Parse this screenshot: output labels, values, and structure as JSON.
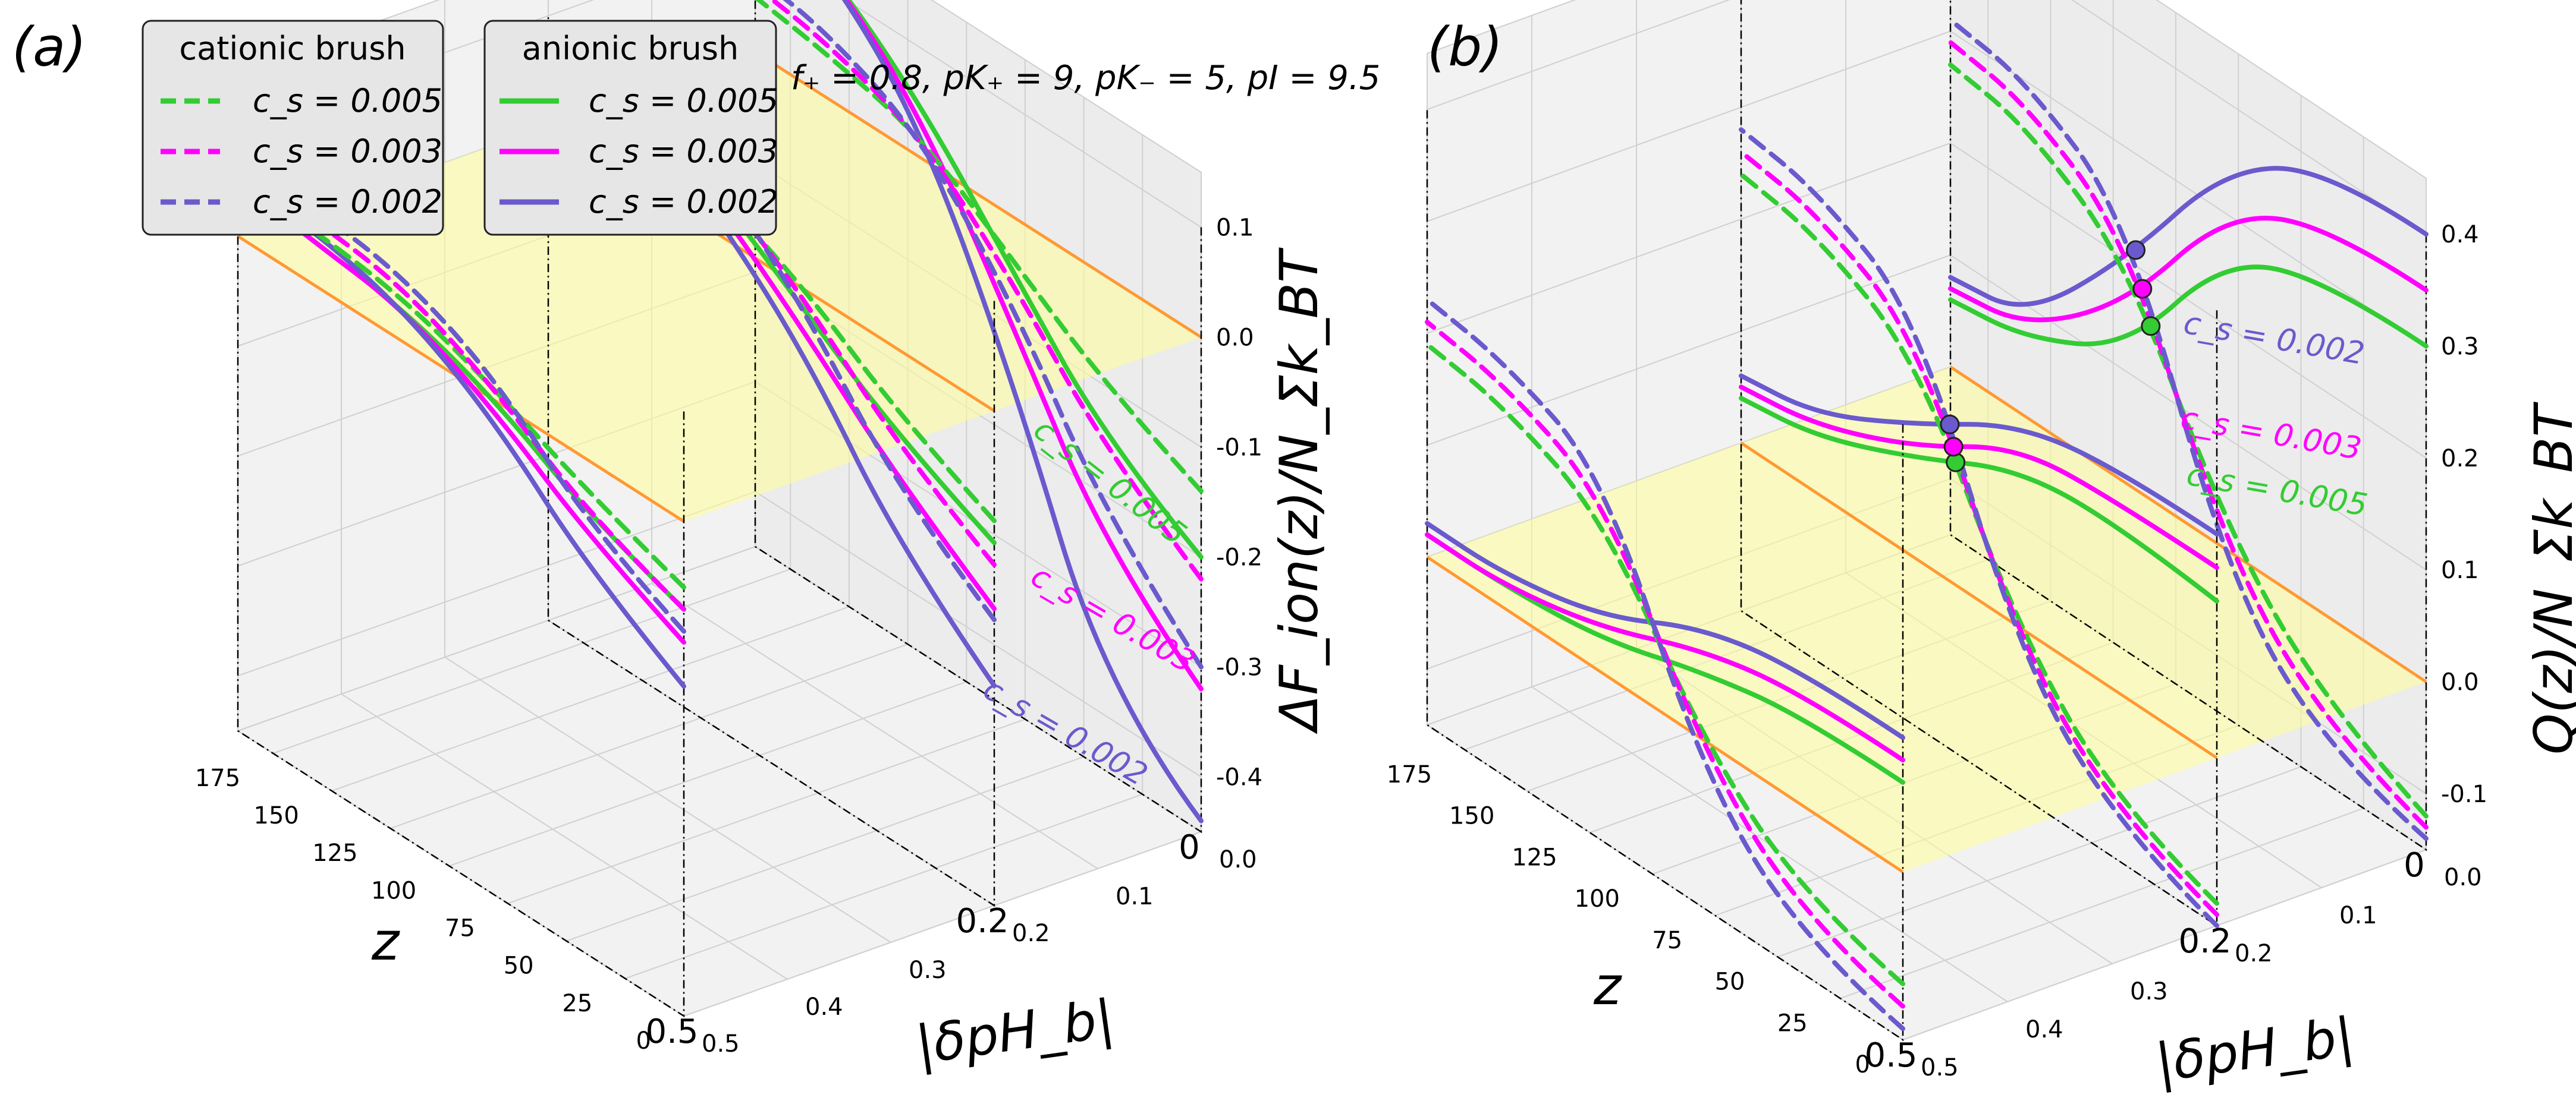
{
  "chart_data": [
    {
      "panel": "(a)",
      "type": "line",
      "subtype": "3d-waterfall",
      "title": "f₊ = 0.8, pK₊ = 9, pK₋ = 5, pI = 9.5",
      "xlabel": "z",
      "ylabel": "|δpH_b|",
      "zlabel": "ΔF_ion(z)/N_Σk_BT",
      "x_ticks": [
        "0",
        "25",
        "50",
        "75",
        "100",
        "125",
        "150",
        "175"
      ],
      "y_ticks": [
        "0.0",
        "0.1",
        "0.2",
        "0.3",
        "0.4",
        "0.5"
      ],
      "z_ticks": [
        "0.1",
        "0.0",
        "-0.1",
        "-0.2",
        "-0.3",
        "-0.4"
      ],
      "xlim": [
        0,
        190
      ],
      "ylim": [
        0,
        0.5
      ],
      "zlim": [
        -0.45,
        0.15
      ],
      "slice_labels": [
        "0",
        "0.2",
        "0.5"
      ],
      "legend": [
        {
          "title": "cationic brush",
          "entries": [
            {
              "label": "c_s = 0.005",
              "color": "#33cc33",
              "style": "dashed"
            },
            {
              "label": "c_s = 0.003",
              "color": "#ff00ff",
              "style": "dashed"
            },
            {
              "label": "c_s = 0.002",
              "color": "#6a5acd",
              "style": "dashed"
            }
          ]
        },
        {
          "title": "anionic brush",
          "entries": [
            {
              "label": "c_s = 0.005",
              "color": "#33cc33",
              "style": "solid"
            },
            {
              "label": "c_s = 0.003",
              "color": "#ff00ff",
              "style": "solid"
            },
            {
              "label": "c_s = 0.002",
              "color": "#6a5acd",
              "style": "solid"
            }
          ]
        }
      ],
      "annotations": [
        {
          "text": "c_s = 0.005",
          "color": "#33cc33"
        },
        {
          "text": "c_s = 0.003",
          "color": "#ff00ff"
        },
        {
          "text": "c_s = 0.002",
          "color": "#6a5acd"
        }
      ],
      "slices": [
        {
          "dph": 0.0,
          "series": [
            {
              "cs": 0.005,
              "kind": "anionic",
              "z": [
                0,
                40,
                80,
                120,
                160,
                190
              ],
              "values": [
                -0.2,
                -0.15,
                -0.05,
                0.05,
                0.12,
                0.14
              ]
            },
            {
              "cs": 0.003,
              "kind": "anionic",
              "z": [
                0,
                40,
                80,
                120,
                160,
                190
              ],
              "values": [
                -0.32,
                -0.25,
                -0.1,
                0.04,
                0.12,
                0.14
              ]
            },
            {
              "cs": 0.002,
              "kind": "anionic",
              "z": [
                0,
                40,
                80,
                120,
                160,
                190
              ],
              "values": [
                -0.44,
                -0.38,
                -0.15,
                0.03,
                0.12,
                0.14
              ]
            },
            {
              "cs": 0.005,
              "kind": "cationic",
              "z": [
                0,
                40,
                80,
                120,
                160,
                190
              ],
              "values": [
                -0.14,
                -0.1,
                -0.04,
                0.02,
                0.04,
                0.05
              ]
            },
            {
              "cs": 0.003,
              "kind": "cationic",
              "z": [
                0,
                40,
                80,
                120,
                160,
                190
              ],
              "values": [
                -0.22,
                -0.16,
                -0.06,
                0.02,
                0.05,
                0.06
              ]
            },
            {
              "cs": 0.002,
              "kind": "cationic",
              "z": [
                0,
                40,
                80,
                120,
                160,
                190
              ],
              "values": [
                -0.3,
                -0.22,
                -0.08,
                0.02,
                0.06,
                0.07
              ]
            }
          ]
        },
        {
          "dph": 0.2,
          "series": [
            {
              "cs": 0.005,
              "kind": "anionic",
              "z": [
                0,
                40,
                80,
                120,
                160,
                190
              ],
              "values": [
                -0.12,
                -0.08,
                -0.02,
                0.04,
                0.08,
                0.09
              ]
            },
            {
              "cs": 0.003,
              "kind": "anionic",
              "z": [
                0,
                40,
                80,
                120,
                160,
                190
              ],
              "values": [
                -0.18,
                -0.12,
                -0.04,
                0.03,
                0.08,
                0.09
              ]
            },
            {
              "cs": 0.002,
              "kind": "anionic",
              "z": [
                0,
                40,
                80,
                120,
                160,
                190
              ],
              "values": [
                -0.25,
                -0.18,
                -0.06,
                0.02,
                0.08,
                0.09
              ]
            },
            {
              "cs": 0.005,
              "kind": "cationic",
              "z": [
                0,
                40,
                80,
                120,
                160,
                190
              ],
              "values": [
                -0.1,
                -0.06,
                0.0,
                0.04,
                0.06,
                0.07
              ]
            },
            {
              "cs": 0.003,
              "kind": "cationic",
              "z": [
                0,
                40,
                80,
                120,
                160,
                190
              ],
              "values": [
                -0.14,
                -0.09,
                -0.01,
                0.05,
                0.07,
                0.08
              ]
            },
            {
              "cs": 0.002,
              "kind": "cationic",
              "z": [
                0,
                40,
                80,
                120,
                160,
                190
              ],
              "values": [
                -0.19,
                -0.13,
                -0.02,
                0.06,
                0.08,
                0.09
              ]
            }
          ]
        },
        {
          "dph": 0.5,
          "series": [
            {
              "cs": 0.005,
              "kind": "anionic",
              "z": [
                0,
                40,
                80,
                120,
                160,
                190
              ],
              "values": [
                -0.08,
                -0.05,
                0.0,
                0.03,
                0.04,
                0.05
              ]
            },
            {
              "cs": 0.003,
              "kind": "anionic",
              "z": [
                0,
                40,
                80,
                120,
                160,
                190
              ],
              "values": [
                -0.11,
                -0.07,
                -0.01,
                0.03,
                0.04,
                0.05
              ]
            },
            {
              "cs": 0.002,
              "kind": "anionic",
              "z": [
                0,
                40,
                80,
                120,
                160,
                190
              ],
              "values": [
                -0.15,
                -0.1,
                -0.02,
                0.03,
                0.05,
                0.05
              ]
            },
            {
              "cs": 0.005,
              "kind": "cationic",
              "z": [
                0,
                40,
                80,
                120,
                160,
                190
              ],
              "values": [
                -0.06,
                -0.03,
                0.01,
                0.04,
                0.05,
                0.05
              ]
            },
            {
              "cs": 0.003,
              "kind": "cationic",
              "z": [
                0,
                40,
                80,
                120,
                160,
                190
              ],
              "values": [
                -0.08,
                -0.05,
                0.01,
                0.05,
                0.06,
                0.06
              ]
            },
            {
              "cs": 0.002,
              "kind": "cationic",
              "z": [
                0,
                40,
                80,
                120,
                160,
                190
              ],
              "values": [
                -0.1,
                -0.06,
                0.02,
                0.06,
                0.07,
                0.07
              ]
            }
          ]
        }
      ]
    },
    {
      "panel": "(b)",
      "type": "line",
      "subtype": "3d-waterfall",
      "title": "",
      "xlabel": "z",
      "ylabel": "|δpH_b|",
      "zlabel": "Q(z)/N_Σk_BT",
      "x_ticks": [
        "0",
        "25",
        "50",
        "75",
        "100",
        "125",
        "150",
        "175"
      ],
      "y_ticks": [
        "0.0",
        "0.1",
        "0.2",
        "0.3",
        "0.4",
        "0.5"
      ],
      "z_ticks": [
        "0.4",
        "0.3",
        "0.2",
        "0.1",
        "0.0",
        "-0.1"
      ],
      "xlim": [
        0,
        190
      ],
      "ylim": [
        0,
        0.5
      ],
      "zlim": [
        -0.15,
        0.45
      ],
      "slice_labels": [
        "0",
        "0.2",
        "0.5"
      ],
      "annotations": [
        {
          "text": "c_s = 0.002",
          "color": "#6a5acd"
        },
        {
          "text": "c_s = 0.003",
          "color": "#ff00ff"
        },
        {
          "text": "c_s = 0.005",
          "color": "#33cc33"
        }
      ],
      "slices": [
        {
          "dph": 0.0,
          "series": [
            {
              "cs": 0.005,
              "kind": "anionic",
              "z": [
                0,
                40,
                80,
                120,
                160,
                190
              ],
              "values": [
                0.3,
                0.3,
                0.26,
                0.12,
                0.07,
                0.06
              ]
            },
            {
              "cs": 0.003,
              "kind": "anionic",
              "z": [
                0,
                40,
                80,
                120,
                160,
                190
              ],
              "values": [
                0.35,
                0.35,
                0.3,
                0.16,
                0.08,
                0.07
              ]
            },
            {
              "cs": 0.002,
              "kind": "anionic",
              "z": [
                0,
                40,
                80,
                120,
                160,
                190
              ],
              "values": [
                0.4,
                0.4,
                0.34,
                0.2,
                0.09,
                0.08
              ]
            },
            {
              "cs": 0.005,
              "kind": "cationic",
              "z": [
                0,
                40,
                80,
                120,
                160,
                190
              ],
              "values": [
                -0.12,
                -0.08,
                0.02,
                0.2,
                0.26,
                0.27
              ]
            },
            {
              "cs": 0.003,
              "kind": "cationic",
              "z": [
                0,
                40,
                80,
                120,
                160,
                190
              ],
              "values": [
                -0.13,
                -0.1,
                0.0,
                0.22,
                0.28,
                0.29
              ]
            },
            {
              "cs": 0.002,
              "kind": "cationic",
              "z": [
                0,
                40,
                80,
                120,
                160,
                190
              ],
              "values": [
                -0.14,
                -0.12,
                -0.02,
                0.24,
                0.3,
                0.31
              ]
            }
          ]
        },
        {
          "dph": 0.2,
          "series": [
            {
              "cs": 0.005,
              "kind": "anionic",
              "z": [
                0,
                40,
                80,
                120,
                160,
                190
              ],
              "values": [
                0.14,
                0.15,
                0.14,
                0.09,
                0.05,
                0.04
              ]
            },
            {
              "cs": 0.003,
              "kind": "anionic",
              "z": [
                0,
                40,
                80,
                120,
                160,
                190
              ],
              "values": [
                0.17,
                0.17,
                0.16,
                0.1,
                0.06,
                0.05
              ]
            },
            {
              "cs": 0.002,
              "kind": "anionic",
              "z": [
                0,
                40,
                80,
                120,
                160,
                190
              ],
              "values": [
                0.2,
                0.2,
                0.18,
                0.12,
                0.07,
                0.06
              ]
            },
            {
              "cs": 0.005,
              "kind": "cationic",
              "z": [
                0,
                40,
                80,
                120,
                160,
                190
              ],
              "values": [
                -0.13,
                -0.1,
                0.0,
                0.18,
                0.23,
                0.24
              ]
            },
            {
              "cs": 0.003,
              "kind": "cationic",
              "z": [
                0,
                40,
                80,
                120,
                160,
                190
              ],
              "values": [
                -0.14,
                -0.11,
                -0.01,
                0.2,
                0.25,
                0.26
              ]
            },
            {
              "cs": 0.002,
              "kind": "cationic",
              "z": [
                0,
                40,
                80,
                120,
                160,
                190
              ],
              "values": [
                -0.15,
                -0.12,
                -0.02,
                0.22,
                0.27,
                0.28
              ]
            }
          ]
        },
        {
          "dph": 0.5,
          "series": [
            {
              "cs": 0.005,
              "kind": "anionic",
              "z": [
                0,
                40,
                80,
                120,
                160,
                190
              ],
              "values": [
                0.08,
                0.08,
                0.06,
                0.03,
                0.02,
                0.02
              ]
            },
            {
              "cs": 0.003,
              "kind": "anionic",
              "z": [
                0,
                40,
                80,
                120,
                160,
                190
              ],
              "values": [
                0.1,
                0.1,
                0.08,
                0.04,
                0.02,
                0.02
              ]
            },
            {
              "cs": 0.002,
              "kind": "anionic",
              "z": [
                0,
                40,
                80,
                120,
                160,
                190
              ],
              "values": [
                0.12,
                0.12,
                0.1,
                0.05,
                0.03,
                0.03
              ]
            },
            {
              "cs": 0.005,
              "kind": "cationic",
              "z": [
                0,
                40,
                80,
                120,
                160,
                190
              ],
              "values": [
                -0.1,
                -0.08,
                0.0,
                0.14,
                0.18,
                0.19
              ]
            },
            {
              "cs": 0.003,
              "kind": "cationic",
              "z": [
                0,
                40,
                80,
                120,
                160,
                190
              ],
              "values": [
                -0.12,
                -0.1,
                -0.01,
                0.16,
                0.2,
                0.21
              ]
            },
            {
              "cs": 0.002,
              "kind": "cationic",
              "z": [
                0,
                40,
                80,
                120,
                160,
                190
              ],
              "values": [
                -0.14,
                -0.12,
                -0.03,
                0.18,
                0.22,
                0.23
              ]
            }
          ]
        }
      ]
    }
  ],
  "colors": {
    "cs_0005": "#33cc33",
    "cs_0003": "#ff00ff",
    "cs_0002": "#6a5acd",
    "zero_plane": "#ffff99",
    "zero_line": "#ff9933",
    "pane": "#f2f2f2",
    "grid": "#d0d0d0"
  }
}
